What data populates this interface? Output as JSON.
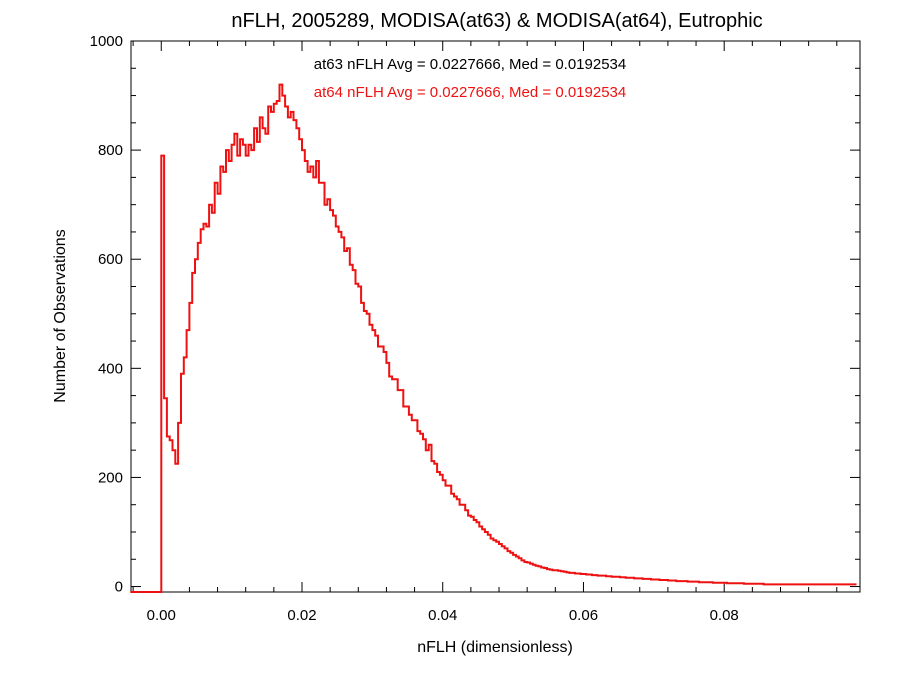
{
  "chart_data": {
    "type": "line",
    "title": "nFLH, 2005289, MODISA(at63) & MODISA(at64), Eutrophic",
    "xlabel": "nFLH (dimensionless)",
    "ylabel": "Number of Observations",
    "xlim": [
      -0.0043,
      0.0993
    ],
    "ylim": [
      -10,
      1000
    ],
    "xticks": [
      0.0,
      0.02,
      0.04,
      0.06,
      0.08
    ],
    "xtick_labels": [
      "0.00",
      "0.02",
      "0.04",
      "0.06",
      "0.08"
    ],
    "yticks": [
      0,
      200,
      400,
      600,
      800,
      1000
    ],
    "ytick_labels": [
      "0",
      "200",
      "400",
      "600",
      "800",
      "1000"
    ],
    "grid": false,
    "annotations": [
      {
        "text": "at63 nFLH Avg = 0.0227666, Med = 0.0192534",
        "color": "#000000"
      },
      {
        "text": "at64 nFLH Avg = 0.0227666, Med = 0.0192534",
        "color": "#ee1111"
      }
    ],
    "bin_width": 0.0004,
    "series": [
      {
        "line_color": "#ee1111",
        "x_start": -0.0044,
        "values": [
          -10,
          -10,
          -10,
          -10,
          -10,
          -10,
          -10,
          -10,
          -10,
          -10,
          -10,
          790,
          345,
          275,
          268,
          250,
          225,
          300,
          390,
          420,
          470,
          520,
          575,
          600,
          630,
          655,
          665,
          660,
          700,
          685,
          740,
          720,
          770,
          760,
          800,
          780,
          810,
          830,
          790,
          820,
          810,
          790,
          810,
          800,
          840,
          815,
          860,
          840,
          830,
          880,
          870,
          885,
          890,
          920,
          900,
          880,
          860,
          870,
          855,
          840,
          820,
          800,
          780,
          760,
          770,
          750,
          780,
          740,
          740,
          700,
          710,
          690,
          680,
          660,
          650,
          640,
          615,
          620,
          590,
          580,
          555,
          550,
          520,
          505,
          500,
          480,
          470,
          460,
          440,
          440,
          430,
          410,
          385,
          380,
          380,
          360,
          360,
          330,
          330,
          315,
          305,
          305,
          285,
          280,
          270,
          250,
          260,
          230,
          225,
          210,
          205,
          195,
          185,
          185,
          170,
          165,
          160,
          150,
          150,
          140,
          130,
          128,
          122,
          118,
          110,
          105,
          100,
          95,
          88,
          85,
          82,
          78,
          74,
          70,
          65,
          62,
          58,
          55,
          52,
          48,
          45,
          44,
          42,
          40,
          38,
          37,
          35,
          34,
          32,
          31,
          30,
          30,
          29,
          28,
          27,
          26,
          25,
          25,
          24,
          24,
          23,
          23,
          22,
          22,
          21,
          21,
          20,
          20,
          20,
          19,
          19,
          18,
          18,
          18,
          17,
          17,
          16,
          16,
          16,
          15,
          15,
          15,
          14,
          14,
          14,
          13,
          13,
          13,
          12,
          12,
          12,
          11,
          11,
          11,
          10,
          10,
          10,
          10,
          9,
          9,
          9,
          9,
          8,
          8,
          8,
          8,
          8,
          7,
          7,
          7,
          7,
          7,
          6,
          6,
          6,
          6,
          6,
          6,
          5,
          5,
          5,
          5,
          5,
          5,
          5,
          4,
          4,
          4,
          4,
          4,
          4,
          4,
          4,
          4,
          4,
          4,
          4,
          4,
          4,
          4,
          4,
          4,
          4,
          4,
          4,
          4,
          4,
          4,
          4,
          4,
          4,
          4,
          4,
          4,
          4,
          4,
          4,
          4
        ]
      }
    ]
  }
}
